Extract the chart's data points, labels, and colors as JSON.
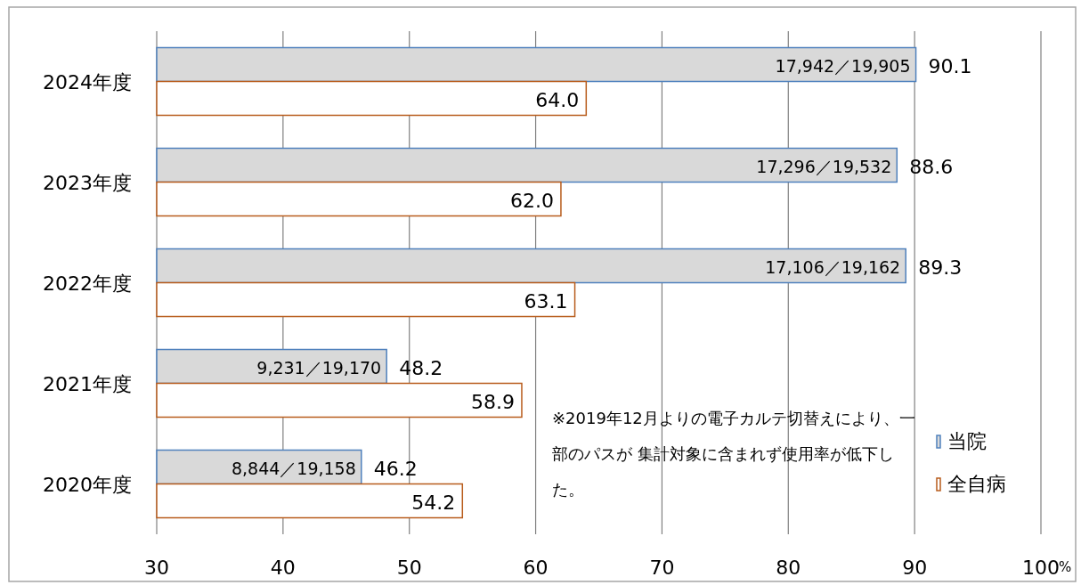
{
  "chart_data": {
    "type": "bar",
    "orientation": "horizontal",
    "categories": [
      "2024年度",
      "2023年度",
      "2022年度",
      "2021年度",
      "2020年度"
    ],
    "series": [
      {
        "name": "当院",
        "color": "#4f81bd",
        "values": [
          90.1,
          88.6,
          89.3,
          48.2,
          46.2
        ],
        "value_labels": [
          "90.1",
          "88.6",
          "89.3",
          "48.2",
          "46.2"
        ]
      },
      {
        "name": "全自病",
        "color": "#b85c1c",
        "values": [
          64.0,
          62.0,
          63.1,
          58.9,
          54.2
        ],
        "value_labels": [
          "64.0",
          "62.0",
          "63.1",
          "58.9",
          "54.2"
        ]
      }
    ],
    "xlim": [
      30,
      100
    ],
    "xticks": [
      30,
      40,
      50,
      60,
      70,
      80,
      90,
      100
    ],
    "xlabel": "%",
    "grid": "x",
    "legend": "right",
    "annotations": [
      {
        "text": "17,942／19,905",
        "x": 90.1,
        "y": "2024年度"
      },
      {
        "text": "17,296／19,532",
        "x": 88.6,
        "y": "2023年度"
      },
      {
        "text": "17,106／19,162",
        "x": 89.3,
        "y": "2022年度"
      },
      {
        "text": "9,231／19,170",
        "x": 48.2,
        "y": "2021年度"
      },
      {
        "text": "8,844／19,158",
        "x": 46.2,
        "y": "2020年度"
      },
      "※2019年12月よりの電子カルテ切替えにより、一部のパスが 集計対象に含まれず使用率が低下した。"
    ]
  }
}
